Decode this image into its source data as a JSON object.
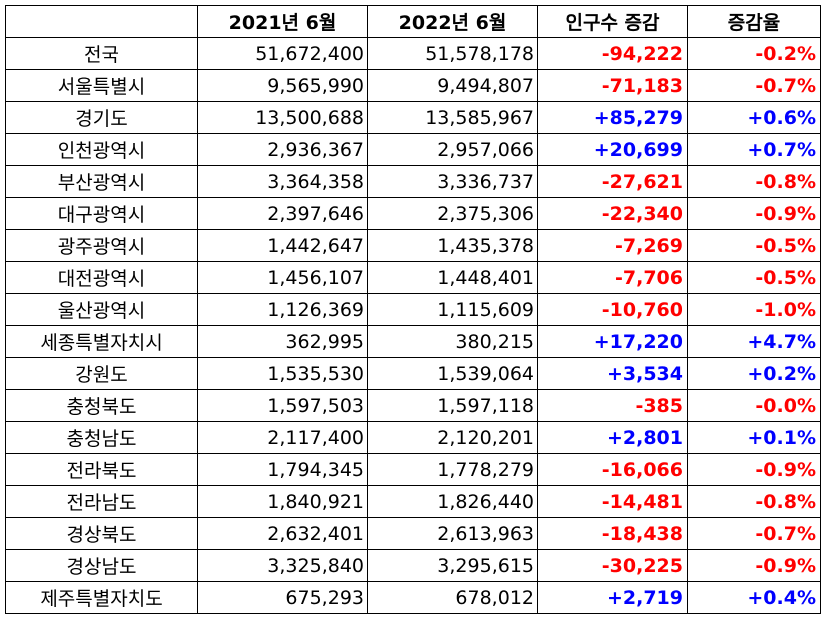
{
  "colors": {
    "negative": "#ff0000",
    "positive": "#0000ff"
  },
  "headers": [
    "",
    "2021년 6월",
    "2022년 6월",
    "인구수 증감",
    "증감율"
  ],
  "rows": [
    {
      "region": "전국",
      "y2021": "51,672,400",
      "y2022": "51,578,178",
      "change": "-94,222",
      "rate": "-0.2%",
      "sign": "neg"
    },
    {
      "region": "서울특별시",
      "y2021": "9,565,990",
      "y2022": "9,494,807",
      "change": "-71,183",
      "rate": "-0.7%",
      "sign": "neg"
    },
    {
      "region": "경기도",
      "y2021": "13,500,688",
      "y2022": "13,585,967",
      "change": "+85,279",
      "rate": "+0.6%",
      "sign": "pos"
    },
    {
      "region": "인천광역시",
      "y2021": "2,936,367",
      "y2022": "2,957,066",
      "change": "+20,699",
      "rate": "+0.7%",
      "sign": "pos"
    },
    {
      "region": "부산광역시",
      "y2021": "3,364,358",
      "y2022": "3,336,737",
      "change": "-27,621",
      "rate": "-0.8%",
      "sign": "neg"
    },
    {
      "region": "대구광역시",
      "y2021": "2,397,646",
      "y2022": "2,375,306",
      "change": "-22,340",
      "rate": "-0.9%",
      "sign": "neg"
    },
    {
      "region": "광주광역시",
      "y2021": "1,442,647",
      "y2022": "1,435,378",
      "change": "-7,269",
      "rate": "-0.5%",
      "sign": "neg"
    },
    {
      "region": "대전광역시",
      "y2021": "1,456,107",
      "y2022": "1,448,401",
      "change": "-7,706",
      "rate": "-0.5%",
      "sign": "neg"
    },
    {
      "region": "울산광역시",
      "y2021": "1,126,369",
      "y2022": "1,115,609",
      "change": "-10,760",
      "rate": "-1.0%",
      "sign": "neg"
    },
    {
      "region": "세종특별자치시",
      "y2021": "362,995",
      "y2022": "380,215",
      "change": "+17,220",
      "rate": "+4.7%",
      "sign": "pos"
    },
    {
      "region": "강원도",
      "y2021": "1,535,530",
      "y2022": "1,539,064",
      "change": "+3,534",
      "rate": "+0.2%",
      "sign": "pos"
    },
    {
      "region": "충청북도",
      "y2021": "1,597,503",
      "y2022": "1,597,118",
      "change": "-385",
      "rate": "-0.0%",
      "sign": "neg"
    },
    {
      "region": "충청남도",
      "y2021": "2,117,400",
      "y2022": "2,120,201",
      "change": "+2,801",
      "rate": "+0.1%",
      "sign": "pos"
    },
    {
      "region": "전라북도",
      "y2021": "1,794,345",
      "y2022": "1,778,279",
      "change": "-16,066",
      "rate": "-0.9%",
      "sign": "neg"
    },
    {
      "region": "전라남도",
      "y2021": "1,840,921",
      "y2022": "1,826,440",
      "change": "-14,481",
      "rate": "-0.8%",
      "sign": "neg"
    },
    {
      "region": "경상북도",
      "y2021": "2,632,401",
      "y2022": "2,613,963",
      "change": "-18,438",
      "rate": "-0.7%",
      "sign": "neg"
    },
    {
      "region": "경상남도",
      "y2021": "3,325,840",
      "y2022": "3,295,615",
      "change": "-30,225",
      "rate": "-0.9%",
      "sign": "neg"
    },
    {
      "region": "제주특별자치도",
      "y2021": "675,293",
      "y2022": "678,012",
      "change": "+2,719",
      "rate": "+0.4%",
      "sign": "pos"
    }
  ]
}
